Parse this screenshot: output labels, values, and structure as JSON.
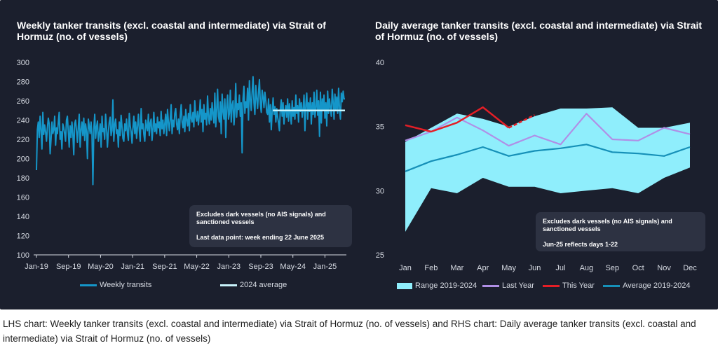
{
  "caption": "LHS chart: Weekly tanker transits (excl. coastal and intermediate) via Strait of Hormuz (no. of vessels) and RHS chart: Daily average tanker transits (excl. coastal and intermediate) via Strait of Hormuz (no. of vessels)",
  "colors": {
    "panel": "#1b1f2d",
    "weekly": "#1596c9",
    "average_2024": "#c9f3fb",
    "range": "#8feefc",
    "last_year": "#b08fe6",
    "this_year": "#e41e26",
    "average": "#1690b8"
  },
  "chart_data": [
    {
      "type": "line",
      "title": "Weekly tanker transits (excl. coastal and intermediate) via Strait of Hormuz (no. of vessels)",
      "x_tick_labels": [
        "Jan-19",
        "Sep-19",
        "May-20",
        "Jan-21",
        "Sep-21",
        "May-22",
        "Jan-23",
        "Sep-23",
        "May-24",
        "Jan-25"
      ],
      "y_tick_labels": [
        "100",
        "120",
        "140",
        "160",
        "180",
        "200",
        "220",
        "240",
        "260",
        "280",
        "300"
      ],
      "ylim": [
        100,
        300
      ],
      "x_range": [
        "2019-01",
        "2025-06"
      ],
      "grid": false,
      "legend_position": "bottom",
      "note": [
        "Excludes dark vessels (no AIS signals) and sanctioned vessels",
        "Last data point: week ending 22 June 2025"
      ],
      "series": [
        {
          "name": "Weekly transits",
          "x_start": "2019-01",
          "x_end": "2025-06",
          "values": [
            188,
            230,
            238,
            222,
            244,
            230,
            210,
            248,
            225,
            235,
            228,
            218,
            232,
            242,
            236,
            205,
            220,
            238,
            226,
            230,
            244,
            214,
            232,
            226,
            238,
            248,
            220,
            228,
            210,
            236,
            232,
            226,
            218,
            240,
            244,
            228,
            212,
            234,
            222,
            238,
            226,
            204,
            236,
            240,
            229,
            217,
            233,
            246,
            212,
            230,
            238,
            224,
            242,
            219,
            236,
            228,
            200,
            241,
            234,
            226,
            238,
            225,
            173,
            231,
            246,
            221,
            233,
            239,
            218,
            226,
            236,
            212,
            244,
            228,
            231,
            220,
            246,
            233,
            212,
            227,
            238,
            243,
            224,
            229,
            261,
            218,
            235,
            241,
            226,
            230,
            212,
            238,
            224,
            245,
            233,
            221,
            218,
            236,
            229,
            241,
            226,
            219,
            247,
            234,
            228,
            216,
            232,
            244,
            226,
            238,
            221,
            233,
            246,
            229,
            218,
            252,
            231,
            236,
            225,
            218,
            240,
            233,
            229,
            246,
            224,
            237,
            241,
            219,
            231,
            248,
            228,
            236,
            226,
            243,
            232,
            238,
            224,
            249,
            231,
            240,
            226,
            236,
            246,
            224,
            251,
            238,
            229,
            241,
            256,
            226,
            240,
            233,
            247,
            252,
            236,
            230,
            241,
            226,
            245,
            256,
            238,
            232,
            244,
            228,
            251,
            240,
            234,
            247,
            229,
            256,
            242,
            238,
            248,
            233,
            260,
            243,
            239,
            249,
            235,
            246,
            261,
            238,
            251,
            228,
            256,
            241,
            247,
            235,
            265,
            244,
            236,
            252,
            240,
            258,
            246,
            237,
            268,
            233,
            250,
            272,
            244,
            238,
            259,
            226,
            267,
            249,
            241,
            262,
            222,
            253,
            266,
            241,
            247,
            271,
            238,
            256,
            260,
            235,
            249,
            278,
            243,
            257,
            251,
            266,
            244,
            258,
            206,
            262,
            275,
            247,
            259,
            253,
            273,
            240,
            281,
            262,
            250,
            269,
            285,
            258,
            246,
            276,
            263,
            252,
            269,
            282,
            257,
            248,
            271,
            264,
            253,
            269,
            260,
            248,
            246,
            262,
            238,
            256,
            230,
            250,
            263,
            246,
            254,
            238,
            252,
            243,
            237,
            229,
            251,
            261,
            244,
            258,
            236,
            249,
            255,
            243,
            262,
            239,
            257,
            248,
            236,
            260,
            244,
            253,
            241,
            266,
            247,
            255,
            238,
            262,
            249,
            258,
            243,
            252,
            266,
            229,
            256,
            268,
            241,
            258,
            249,
            263,
            236,
            258,
            246,
            269,
            243,
            252,
            271,
            245,
            260,
            223,
            269,
            237,
            262,
            250,
            266,
            242,
            258,
            234,
            270,
            247,
            262,
            253,
            244,
            272,
            259,
            241,
            267,
            251,
            264,
            247,
            273,
            252,
            241,
            268,
            259,
            270,
            262,
            262
          ]
        },
        {
          "name": "2024 average",
          "x_start": "2023-12",
          "x_end": "2025-06",
          "value": 250
        }
      ]
    },
    {
      "type": "line",
      "title": "Daily average tanker transits (excl. coastal and intermediate) via Strait of Hormuz (no. of vessels)",
      "categories": [
        "Jan",
        "Feb",
        "Mar",
        "Apr",
        "May",
        "Jun",
        "Jul",
        "Aug",
        "Sep",
        "Oct",
        "Nov",
        "Dec"
      ],
      "y_tick_labels": [
        "25",
        "30",
        "35",
        "40"
      ],
      "ylim": [
        25,
        40
      ],
      "grid": false,
      "legend_position": "bottom",
      "note": [
        "Excludes dark vessels (no AIS signals) and sanctioned vessels",
        "Jun-25 reflects days 1-22"
      ],
      "range": {
        "name": "Range 2019-2024",
        "upper": [
          33.8,
          34.9,
          36.0,
          35.6,
          35.0,
          35.8,
          36.4,
          36.4,
          36.5,
          34.9,
          34.9,
          35.3
        ],
        "lower": [
          26.8,
          30.2,
          29.8,
          31.0,
          30.3,
          30.3,
          29.8,
          30.0,
          30.2,
          29.8,
          31.0,
          31.8
        ]
      },
      "series": [
        {
          "name": "Last Year",
          "values": [
            33.9,
            34.6,
            35.7,
            34.7,
            33.5,
            34.3,
            33.6,
            36.0,
            34.0,
            33.9,
            34.9,
            34.4
          ]
        },
        {
          "name": "This Year",
          "values": [
            35.1,
            34.6,
            35.3,
            36.5,
            34.9,
            35.9,
            null,
            null,
            null,
            null,
            null,
            null
          ]
        },
        {
          "name": "Average 2019-2024",
          "values": [
            31.5,
            32.3,
            32.8,
            33.4,
            32.7,
            33.1,
            33.3,
            33.6,
            33.0,
            32.9,
            32.7,
            33.4
          ]
        }
      ]
    }
  ]
}
